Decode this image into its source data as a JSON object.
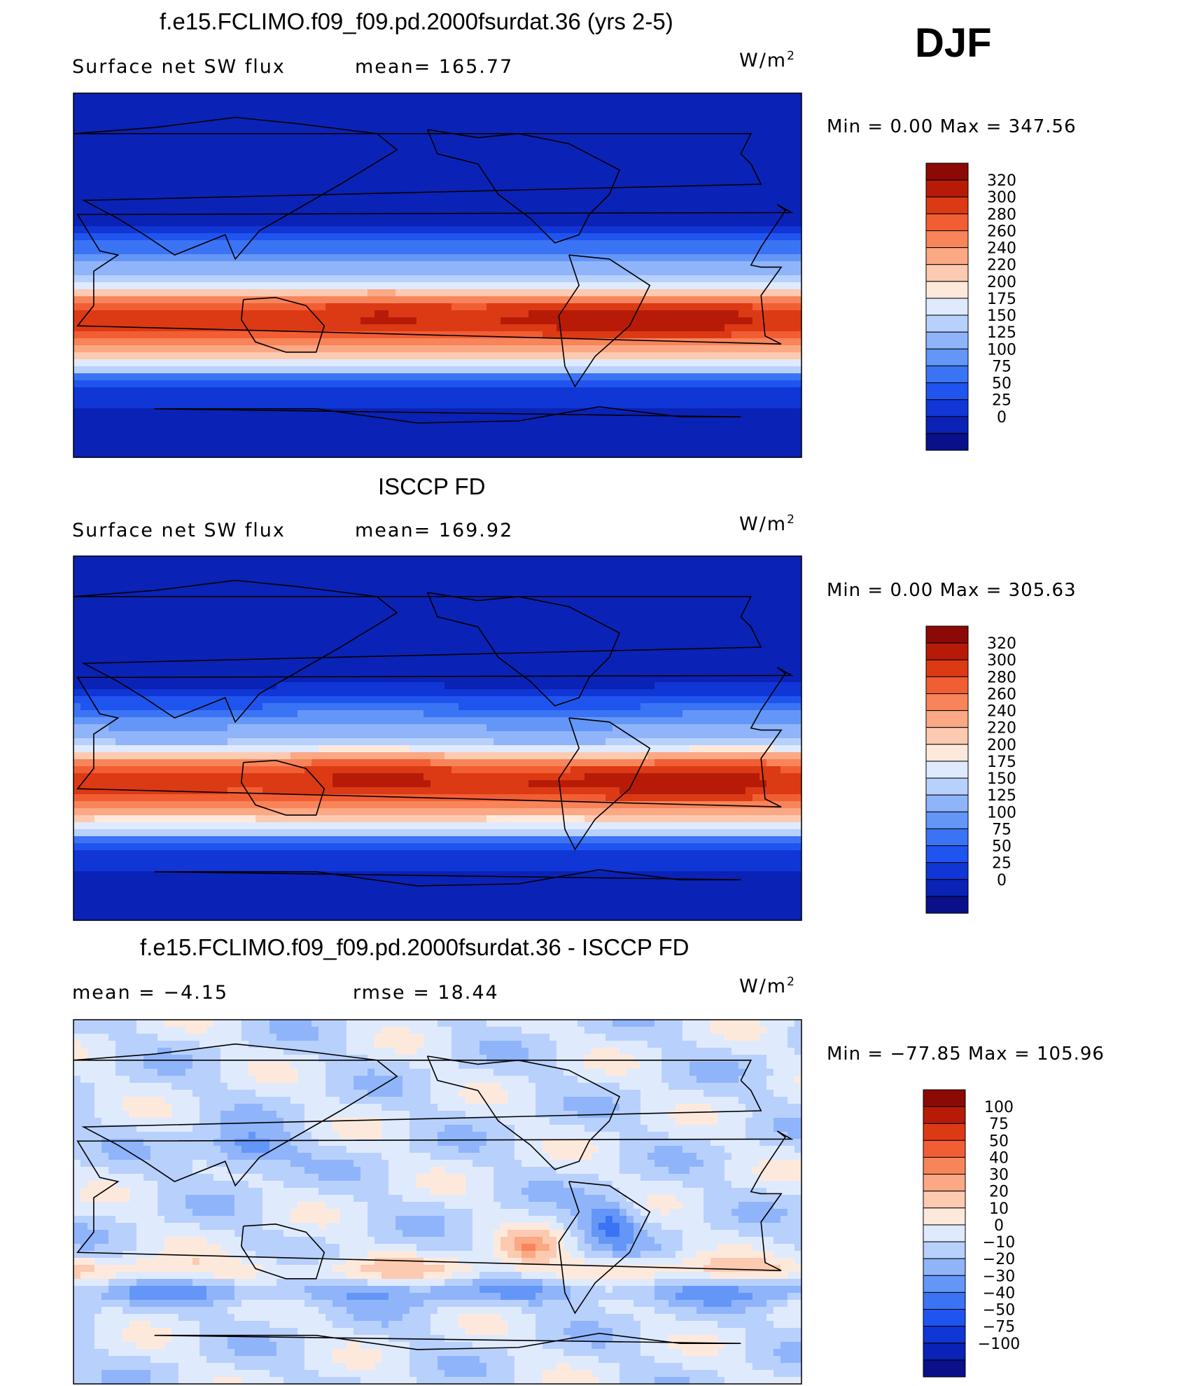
{
  "season": "DJF",
  "units_label": "W/m",
  "units_sup": "2",
  "panels": [
    {
      "title": "f.e15.FCLIMO.f09_f09.pd.2000fsurdat.36 (yrs 2-5)",
      "left_label": "Surface  net  SW  flux",
      "mid_label": "mean=  165.77",
      "minmax": "Min  =      0.00  Max  =  347.56"
    },
    {
      "title": "ISCCP FD",
      "left_label": "Surface  net  SW  flux",
      "mid_label": "mean=  169.92",
      "minmax": "Min  =      0.00  Max  =  305.63"
    },
    {
      "title": "f.e15.FCLIMO.f09_f09.pd.2000fsurdat.36 - ISCCP FD",
      "left_label": "mean  =    −4.15",
      "mid_label": "rmse  =    18.44",
      "minmax": "Min  =  −77.85  Max  =  105.96"
    }
  ],
  "chart_data": [
    {
      "type": "heatmap",
      "title": "f.e15.FCLIMO.f09_f09.pd.2000fsurdat.36 (yrs 2-5)",
      "variable": "Surface net SW flux",
      "units": "W/m2",
      "mean": 165.77,
      "min": 0.0,
      "max": 347.56,
      "contour_levels": [
        0,
        25,
        50,
        75,
        100,
        125,
        150,
        175,
        200,
        220,
        240,
        260,
        280,
        300,
        320
      ],
      "colors": [
        "#0a0f8a",
        "#0a22b5",
        "#1036d6",
        "#1f55ee",
        "#3b73f5",
        "#6496f8",
        "#8fb4fa",
        "#b8d0fc",
        "#dfeafd",
        "#fde9dc",
        "#fccab1",
        "#fba885",
        "#f8845a",
        "#f25e33",
        "#dc3a14",
        "#b71b08",
        "#8b0a05"
      ]
    },
    {
      "type": "heatmap",
      "title": "ISCCP FD",
      "variable": "Surface net SW flux",
      "units": "W/m2",
      "mean": 169.92,
      "min": 0.0,
      "max": 305.63,
      "contour_levels": [
        0,
        25,
        50,
        75,
        100,
        125,
        150,
        175,
        200,
        220,
        240,
        260,
        280,
        300,
        320
      ],
      "colors": [
        "#0a0f8a",
        "#0a22b5",
        "#1036d6",
        "#1f55ee",
        "#3b73f5",
        "#6496f8",
        "#8fb4fa",
        "#b8d0fc",
        "#dfeafd",
        "#fde9dc",
        "#fccab1",
        "#fba885",
        "#f8845a",
        "#f25e33",
        "#dc3a14",
        "#b71b08",
        "#8b0a05"
      ]
    },
    {
      "type": "heatmap",
      "title": "f.e15.FCLIMO.f09_f09.pd.2000fsurdat.36 - ISCCP FD",
      "units": "W/m2",
      "mean": -4.15,
      "rmse": 18.44,
      "min": -77.85,
      "max": 105.96,
      "contour_levels": [
        -100,
        -75,
        -50,
        -40,
        -30,
        -20,
        -10,
        0,
        10,
        20,
        30,
        40,
        50,
        75,
        100
      ],
      "colors": [
        "#0a0f8a",
        "#0a22b5",
        "#1036d6",
        "#1f55ee",
        "#3b73f5",
        "#6496f8",
        "#8fb4fa",
        "#b8d0fc",
        "#dfeafd",
        "#fde9dc",
        "#fccab1",
        "#fba885",
        "#f8845a",
        "#f25e33",
        "#dc3a14",
        "#b71b08",
        "#8b0a05"
      ]
    }
  ]
}
